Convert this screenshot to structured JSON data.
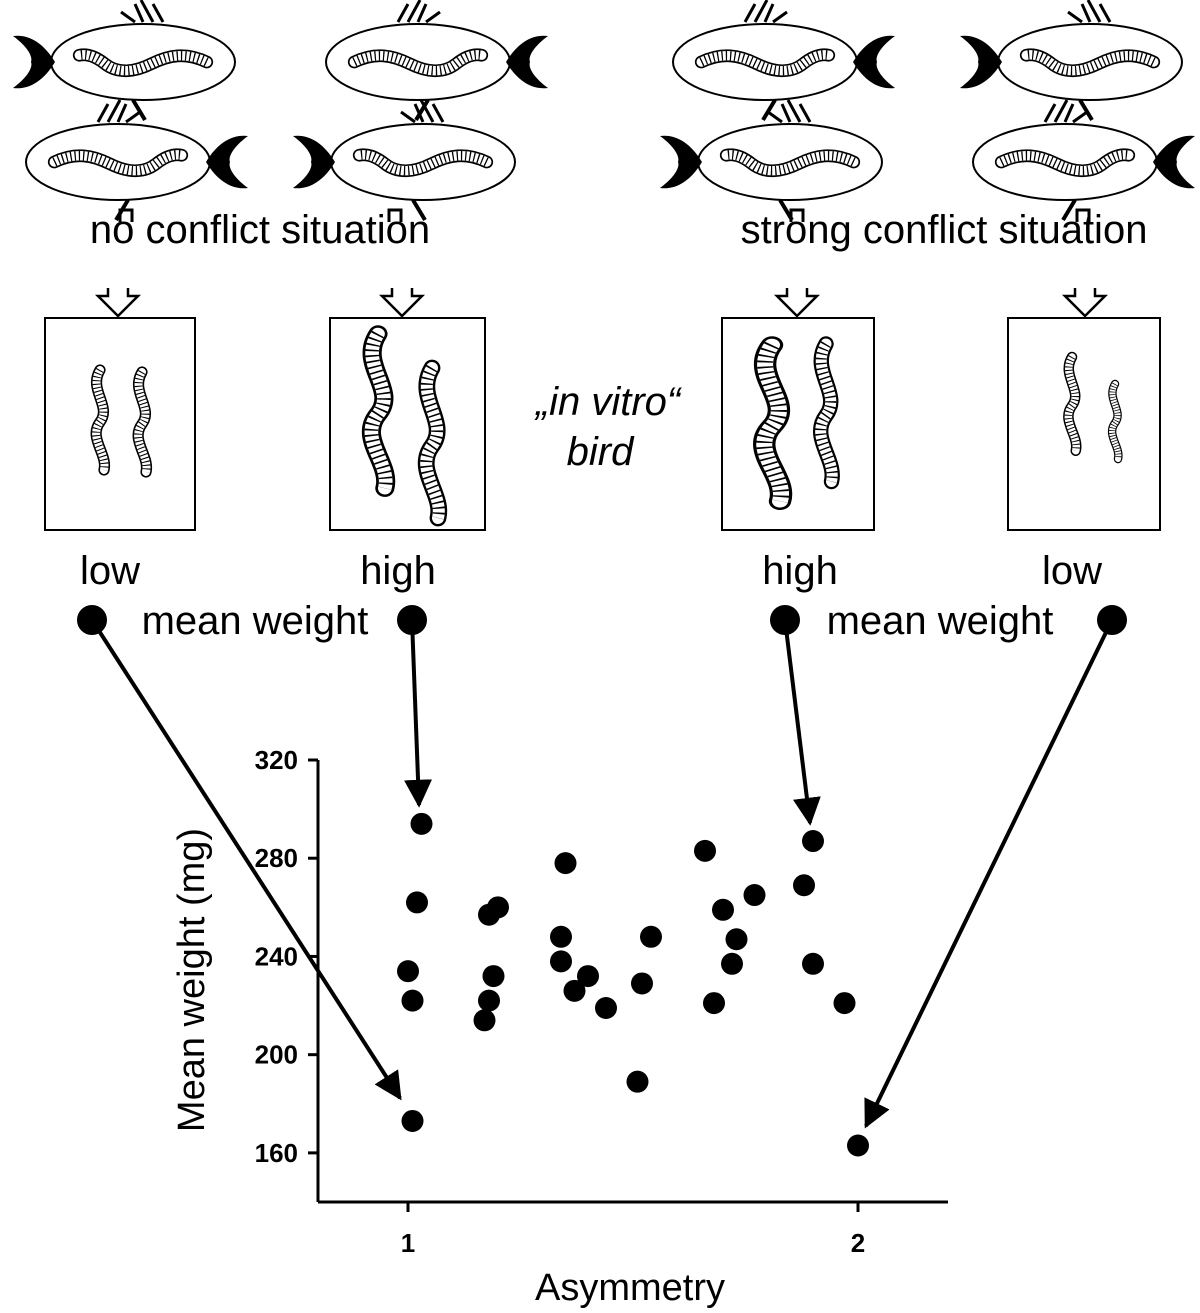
{
  "diagram": {
    "left": {
      "situation": "no conflict situation",
      "weights": [
        "low",
        "high"
      ],
      "mean": "mean weight"
    },
    "center": [
      "„in vitro“",
      "bird"
    ],
    "right": {
      "situation": "strong conflict situation",
      "weights": [
        "high",
        "low"
      ],
      "mean": "mean weight"
    }
  },
  "chart_data": {
    "type": "scatter",
    "xlabel": "Asymmetry",
    "ylabel": "Mean weight (mg)",
    "x": [
      1.03,
      1.02,
      1.0,
      1.01,
      1.01,
      1.18,
      1.2,
      1.19,
      1.18,
      1.17,
      1.35,
      1.34,
      1.34,
      1.4,
      1.37,
      1.44,
      1.52,
      1.54,
      1.51,
      1.66,
      1.7,
      1.73,
      1.72,
      1.68,
      1.77,
      1.88,
      1.9,
      1.9,
      1.97,
      2.0
    ],
    "values": [
      294,
      262,
      234,
      222,
      173,
      257,
      260,
      232,
      222,
      214,
      278,
      248,
      238,
      232,
      226,
      219,
      229,
      248,
      189,
      283,
      259,
      247,
      237,
      221,
      265,
      269,
      287,
      237,
      221,
      163
    ],
    "color": "#000000",
    "xlim": [
      0.8,
      2.2
    ],
    "xticks": [
      1,
      2
    ],
    "ylim": [
      140,
      320
    ],
    "yticks": [
      160,
      200,
      240,
      280,
      320
    ]
  }
}
